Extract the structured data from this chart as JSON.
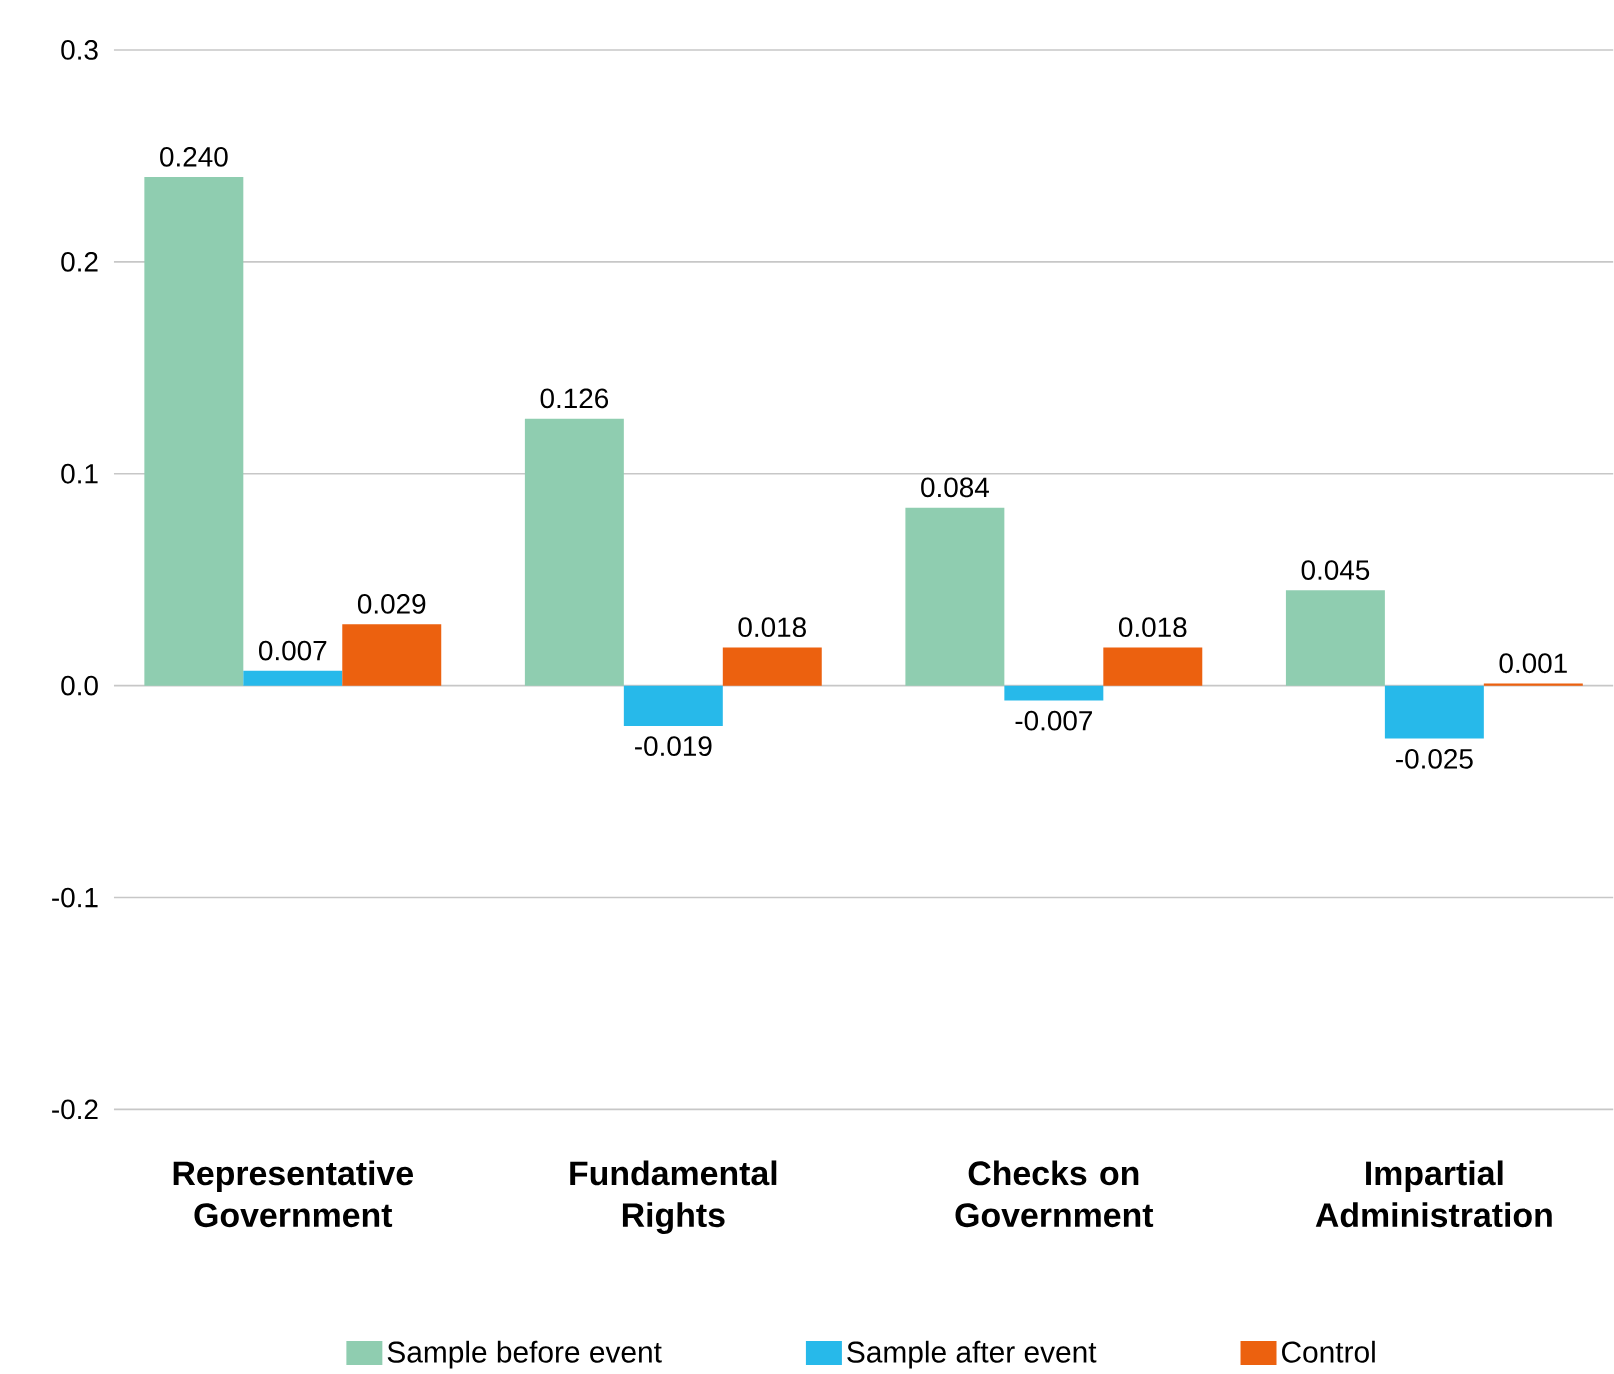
{
  "chart_data": {
    "type": "bar",
    "categories": [
      "Representative Government",
      "Fundamental Rights",
      "Checks on Government",
      "Impartial Administration"
    ],
    "series": [
      {
        "name": "Sample before event",
        "color": "#8fcdb0",
        "values": [
          0.24,
          0.126,
          0.084,
          0.045
        ],
        "value_labels": [
          "0.240",
          "0.126",
          "0.084",
          "0.045"
        ]
      },
      {
        "name": "Sample after event",
        "color": "#27b9ea",
        "values": [
          0.007,
          -0.019,
          -0.007,
          -0.025
        ],
        "value_labels": [
          "0.007",
          "-0.019",
          "-0.007",
          "-0.025"
        ]
      },
      {
        "name": "Control",
        "color": "#ec610f",
        "values": [
          0.029,
          0.018,
          0.018,
          0.001
        ],
        "value_labels": [
          "0.029",
          "0.018",
          "0.018",
          "0.001"
        ]
      }
    ],
    "ylim": [
      -0.2,
      0.3
    ],
    "yticks": [
      {
        "value": -0.2,
        "label": "-0.2"
      },
      {
        "value": -0.1,
        "label": "-0.1"
      },
      {
        "value": 0,
        "label": "0.0"
      },
      {
        "value": 0.1,
        "label": "0.1"
      },
      {
        "value": 0.2,
        "label": "0.2"
      },
      {
        "value": 0.3,
        "label": "0.3"
      }
    ],
    "grid": "y",
    "legend": "bottom"
  }
}
